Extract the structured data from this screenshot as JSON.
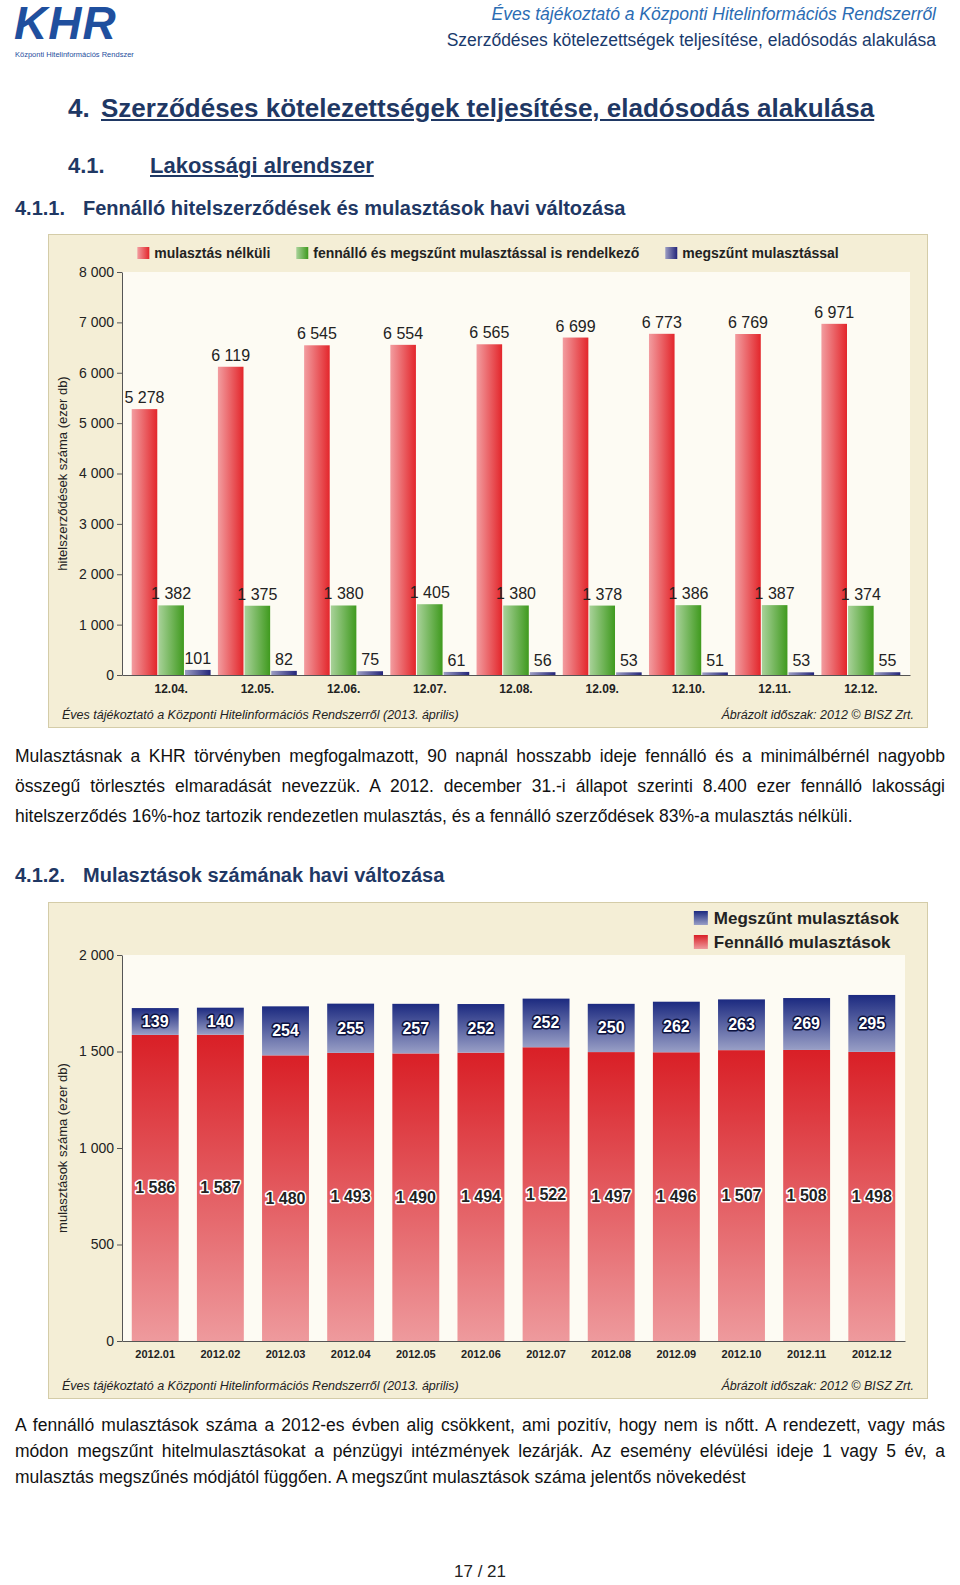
{
  "header": {
    "logo": "KHR",
    "logo_subtitle": "Központi Hitelinformációs Rendszer",
    "title": "Éves tájékoztató a Központi Hitelinformációs Rendszerről",
    "subtitle": "Szerződéses kötelezettségek teljesítése, eladósodás alakulása"
  },
  "section": {
    "number": "4.",
    "title": "Szerződéses kötelezettségek teljesítése, eladósodás alakulása"
  },
  "subsection": {
    "number": "4.1.",
    "title": "Lakossági alrendszer"
  },
  "subsubsections": [
    {
      "number": "4.1.1.",
      "title": "Fennálló hitelszerződések és mulasztások havi változása"
    },
    {
      "number": "4.1.2.",
      "title": "Mulasztások számának havi változása"
    }
  ],
  "chart_data": [
    {
      "type": "bar",
      "ylabel": "hitelszerződések száma (ezer db)",
      "categories": [
        "12.04.",
        "12.05.",
        "12.06.",
        "12.07.",
        "12.08.",
        "12.09.",
        "12.10.",
        "12.11.",
        "12.12."
      ],
      "series": [
        {
          "name": "mulasztás nélküli",
          "color": "#e3262b",
          "values": [
            5278,
            6119,
            6545,
            6554,
            6565,
            6699,
            6773,
            6769,
            6971
          ],
          "value_labels": [
            "5 278",
            "6 119",
            "6 545",
            "6 554",
            "6 565",
            "6 699",
            "6 773",
            "6 769",
            "6 971"
          ]
        },
        {
          "name": "fennálló és megszűnt mulasztással is rendelkező",
          "color": "#3f9a1e",
          "values": [
            1382,
            1375,
            1380,
            1405,
            1380,
            1378,
            1386,
            1387,
            1374
          ],
          "value_labels": [
            "1 382",
            "1 375",
            "1 380",
            "1 405",
            "1 380",
            "1 378",
            "1 386",
            "1 387",
            "1 374"
          ]
        },
        {
          "name": "megszűnt mulasztással",
          "color": "#23257a",
          "values": [
            101,
            82,
            75,
            61,
            56,
            53,
            51,
            53,
            55
          ]
        }
      ],
      "ylim": [
        0,
        8000
      ],
      "yticks": [
        0,
        {
          "value": 1000,
          "label": "1 000"
        },
        {
          "value": 2000,
          "label": "2 000"
        },
        {
          "value": 3000,
          "label": "3 000"
        },
        {
          "value": 4000,
          "label": "4 000"
        },
        {
          "value": 5000,
          "label": "5 000"
        },
        {
          "value": 6000,
          "label": "6 000"
        },
        {
          "value": 7000,
          "label": "7 000"
        },
        {
          "value": 8000,
          "label": "8 000"
        }
      ],
      "grid": false,
      "stacked": false,
      "legend": "top",
      "data_labels": true,
      "annotations": [
        "Éves tájékoztató a Központi Hitelinformációs Rendszerről (2013. április)",
        "Ábrázolt időszak: 2012 © BISZ Zrt."
      ]
    },
    {
      "type": "bar",
      "ylabel": "mulasztások száma (ezer db)",
      "categories": [
        "2012.01",
        "2012.02",
        "2012.03",
        "2012.04",
        "2012.05",
        "2012.06",
        "2012.07",
        "2012.08",
        "2012.09",
        "2012.10",
        "2012.11",
        "2012.12"
      ],
      "series": [
        {
          "name": "Fennálló mulasztások",
          "color": "#d91f26",
          "values": [
            1586,
            1587,
            1480,
            1493,
            1490,
            1494,
            1522,
            1497,
            1496,
            1507,
            1508,
            1498
          ],
          "value_labels": [
            "1 586",
            "1 587",
            "1 480",
            "1 493",
            "1 490",
            "1 494",
            "1 522",
            "1 497",
            "1 496",
            "1 507",
            "1 508",
            "1 498"
          ]
        },
        {
          "name": "Megszűnt mulasztások",
          "color": "#1c2a80",
          "values": [
            139,
            140,
            254,
            255,
            257,
            252,
            252,
            250,
            262,
            263,
            269,
            295
          ]
        }
      ],
      "ylim": [
        0,
        2000
      ],
      "yticks": [
        0,
        500,
        {
          "value": 1000,
          "label": "1 000"
        },
        {
          "value": 1500,
          "label": "1 500"
        },
        {
          "value": 2000,
          "label": "2 000"
        }
      ],
      "grid": false,
      "stacked": true,
      "legend": "top-right",
      "data_labels": true,
      "annotations": [
        "Éves tájékoztató a Központi Hitelinformációs Rendszerről (2013. április)",
        "Ábrázolt időszak: 2012 © BISZ Zrt."
      ]
    }
  ],
  "paragraphs": [
    "Mulasztásnak a KHR törvényben megfogalmazott, 90 napnál hosszabb ideje fennálló és a minimálbérnél nagyobb összegű törlesztés elmaradását nevezzük. A 2012. december 31.-i állapot szerinti 8.400 ezer fennálló lakossági hitelszerződés 16%-hoz tartozik rendezetlen mulasztás, és a fennálló szerződések 83%-a mulasztás nélküli.",
    "A fennálló mulasztások száma a 2012-es évben alig csökkent, ami pozitív, hogy nem is nőtt. A rendezett, vagy más módon megszűnt hitelmulasztásokat a pénzügyi intézmények lezárják. Az esemény elévülési ideje 1 vagy 5 év, a mulasztás megszűnés módjától függően. A megszűnt mulasztások száma jelentős növekedést"
  ],
  "page": "17 / 21"
}
